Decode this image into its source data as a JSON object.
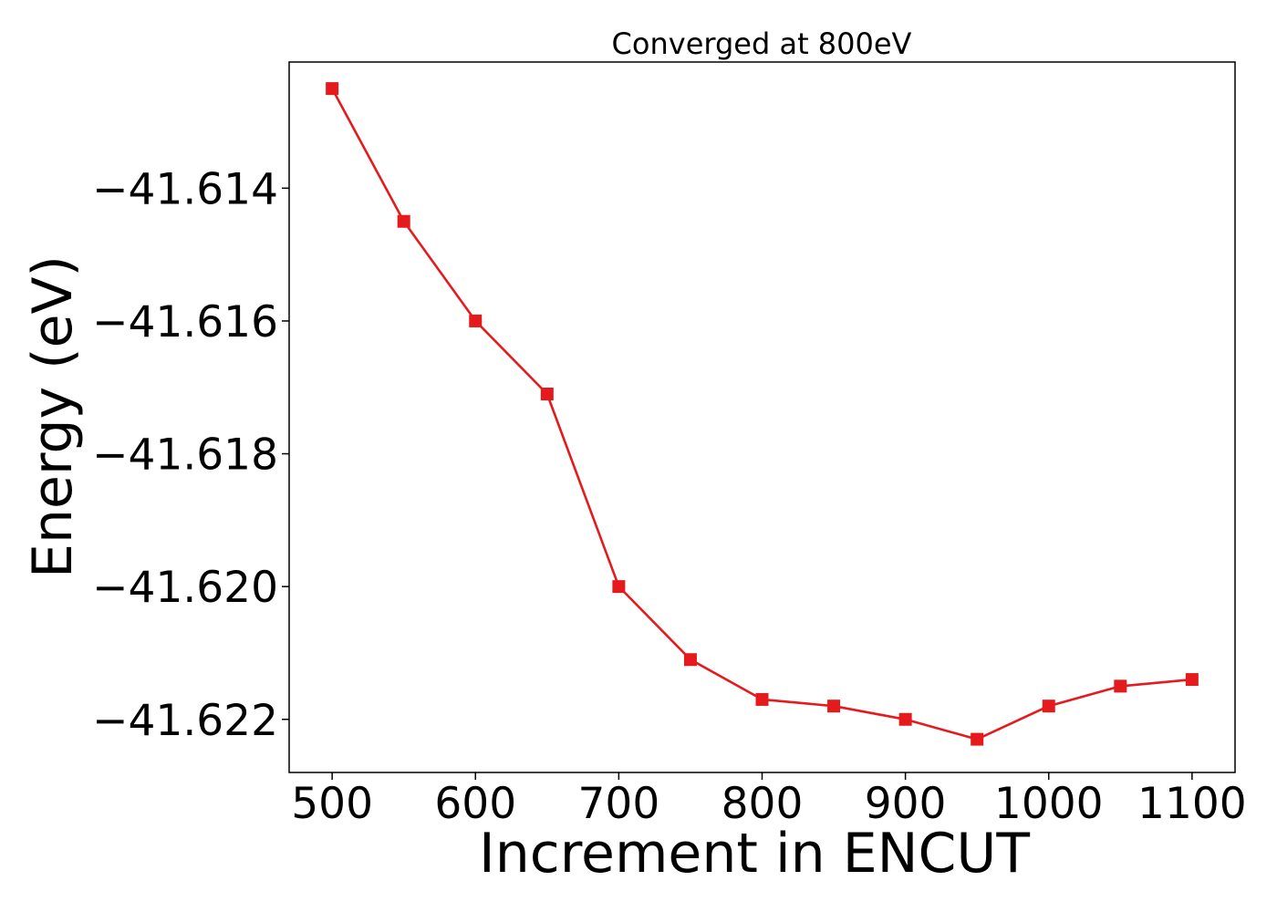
{
  "chart_data": {
    "type": "line",
    "title": "Converged at 800eV",
    "xlabel": "Increment in ENCUT",
    "ylabel": "Energy (eV)",
    "xlim": [
      470,
      1130
    ],
    "ylim": [
      -41.6228,
      -41.6121
    ],
    "x_ticks": [
      500,
      600,
      700,
      800,
      900,
      1000,
      1100
    ],
    "y_ticks": [
      -41.614,
      -41.616,
      -41.618,
      -41.62,
      -41.622
    ],
    "y_tick_labels": [
      "−41.614",
      "−41.616",
      "−41.618",
      "−41.620",
      "−41.622"
    ],
    "grid": false,
    "series": [
      {
        "color": "#e41a1c",
        "marker": "square",
        "x": [
          500,
          550,
          600,
          650,
          700,
          750,
          800,
          850,
          900,
          950,
          1000,
          1050,
          1100
        ],
        "y": [
          -41.6125,
          -41.6145,
          -41.616,
          -41.6171,
          -41.62,
          -41.6211,
          -41.6217,
          -41.6218,
          -41.622,
          -41.6223,
          -41.6218,
          -41.6215,
          -41.6214
        ]
      }
    ]
  }
}
